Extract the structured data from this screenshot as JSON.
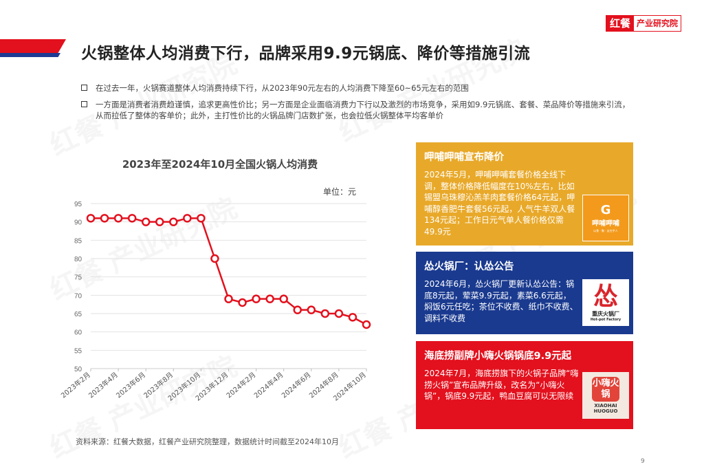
{
  "header": {
    "logo_main": "红餐",
    "logo_sub": "产业研究院",
    "title": "火锅整体人均消费下行，品牌采用9.9元锅底、降价等措施引流"
  },
  "bullets": [
    "在过去一年，火锅赛道整体人均消费持续下行，从2023年90元左右的人均消费下降至60~65元左右的范围",
    "一方面是消费者消费趋谨慎，追求更高性价比；另一方面是企业面临消费力下行以及激烈的市场竞争，采用如9.9元锅底、套餐、菜品降价等措施来引流，从而拉低了整体的客单价；此外，主打性价比的火锅品牌门店数扩张，也会拉低火锅整体平均客单价"
  ],
  "chart": {
    "title": "2023年至2024年10月全国火锅人均消费",
    "unit": "单位：元",
    "source": "资料来源：红餐大数据，红餐产业研究院整理，数据统计时间截至2024年10月"
  },
  "chart_data": {
    "type": "line",
    "title": "2023年至2024年10月全国火锅人均消费",
    "xlabel": "",
    "ylabel": "单位：元",
    "ylim": [
      50,
      95
    ],
    "yticks": [
      50,
      55,
      60,
      65,
      70,
      75,
      80,
      85,
      90,
      95
    ],
    "grid": true,
    "x_tick_labels": [
      "2023年2月",
      "2023年4月",
      "2023年6月",
      "2023年8月",
      "2023年10月",
      "2023年12月",
      "2024年2月",
      "2024年4月",
      "2024年6月",
      "2024年8月",
      "2024年10月"
    ],
    "x": [
      "2023-02",
      "2023-03",
      "2023-04",
      "2023-05",
      "2023-06",
      "2023-07",
      "2023-08",
      "2023-09",
      "2023-10",
      "2023-11",
      "2023-12",
      "2024-01",
      "2024-02",
      "2024-03",
      "2024-04",
      "2024-05",
      "2024-06",
      "2024-07",
      "2024-08",
      "2024-09",
      "2024-10"
    ],
    "series": [
      {
        "name": "全国火锅人均消费",
        "color": "#e3101d",
        "values": [
          91,
          91,
          91,
          91,
          90,
          90,
          90,
          91,
          91,
          80,
          69,
          68,
          69,
          69,
          69,
          66,
          66,
          65,
          65,
          64,
          62
        ]
      }
    ]
  },
  "cards": [
    {
      "title": "呷哺呷哺宣布降价",
      "body": "2024年5月，呷哺呷哺套餐价格全线下调，整体价格降低幅度在10%左右，比如锡盟乌珠穆沁羔羊肉套餐价格64元起，呷哺醇香肥牛套餐56元起，人气牛羊双人餐134元起；工作日元气单人餐价格仅需49.9元",
      "color": "#e8a92a",
      "logo_glyph": "G",
      "logo_text": "呷哺呷哺",
      "logo_sub": "以食 · 聚 · 友在乎人"
    },
    {
      "title": "怂火锅厂：认怂公告",
      "body": "2024年6月，怂火锅厂更新认怂公告：锅底8元起，荤菜9.9元起，素菜6.6元起，焖饭6元任吃；茶位不收费、纸巾不收费、调料不收费",
      "color": "#1a3a8f",
      "logo_glyph": "怂",
      "logo_text": "重庆火锅厂",
      "logo_sub": "Hot-pot Factory"
    },
    {
      "title": "海底捞副牌小嗨火锅锅底9.9元起",
      "body": "2024年7月，海底捞旗下的火锅子品牌“嗨捞火锅”宣布品牌升级，改名为“小嗨火锅”，锅底9.9元起，鸭血豆腐可以无限续",
      "color": "#e3101d",
      "logo_glyph": "小嗨火锅",
      "logo_text": "XIAOHAI HUOGUO"
    }
  ],
  "page_number": "9"
}
